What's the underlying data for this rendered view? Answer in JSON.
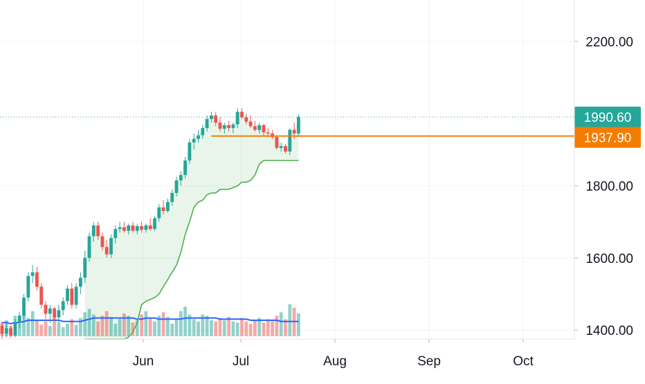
{
  "chart_data": {
    "type": "candlestick",
    "x_ticks": [
      "Jun",
      "Jul",
      "Aug",
      "Sep",
      "Oct"
    ],
    "y_ticks": [
      "2200.00",
      "1800.00",
      "1600.00",
      "1400.00"
    ],
    "ylim": [
      1365,
      2290
    ],
    "last_price": {
      "label": "1990.60",
      "value": 1990.6,
      "color": "#26a69a"
    },
    "stop_level": {
      "label": "1937.90",
      "value": 1937.9,
      "color": "#f57c00"
    },
    "colors": {
      "up": "#26a69a",
      "down": "#ef5350",
      "trail": "#4caf50",
      "volume_ma": "#2962ff"
    },
    "grid": true,
    "candles": [
      {
        "o": 1412,
        "h": 1422,
        "l": 1376,
        "c": 1390
      },
      {
        "o": 1390,
        "h": 1418,
        "l": 1380,
        "c": 1405
      },
      {
        "o": 1405,
        "h": 1412,
        "l": 1378,
        "c": 1385
      },
      {
        "o": 1385,
        "h": 1430,
        "l": 1380,
        "c": 1420
      },
      {
        "o": 1420,
        "h": 1450,
        "l": 1405,
        "c": 1440
      },
      {
        "o": 1440,
        "h": 1500,
        "l": 1430,
        "c": 1490
      },
      {
        "o": 1490,
        "h": 1560,
        "l": 1480,
        "c": 1550
      },
      {
        "o": 1550,
        "h": 1580,
        "l": 1530,
        "c": 1560
      },
      {
        "o": 1560,
        "h": 1575,
        "l": 1510,
        "c": 1520
      },
      {
        "o": 1520,
        "h": 1530,
        "l": 1460,
        "c": 1470
      },
      {
        "o": 1470,
        "h": 1480,
        "l": 1430,
        "c": 1445
      },
      {
        "o": 1445,
        "h": 1470,
        "l": 1420,
        "c": 1460
      },
      {
        "o": 1460,
        "h": 1465,
        "l": 1425,
        "c": 1435
      },
      {
        "o": 1435,
        "h": 1470,
        "l": 1420,
        "c": 1455
      },
      {
        "o": 1455,
        "h": 1490,
        "l": 1440,
        "c": 1480
      },
      {
        "o": 1480,
        "h": 1525,
        "l": 1470,
        "c": 1515
      },
      {
        "o": 1515,
        "h": 1530,
        "l": 1460,
        "c": 1470
      },
      {
        "o": 1470,
        "h": 1530,
        "l": 1460,
        "c": 1520
      },
      {
        "o": 1520,
        "h": 1560,
        "l": 1500,
        "c": 1545
      },
      {
        "o": 1545,
        "h": 1620,
        "l": 1530,
        "c": 1600
      },
      {
        "o": 1600,
        "h": 1670,
        "l": 1590,
        "c": 1660
      },
      {
        "o": 1660,
        "h": 1700,
        "l": 1645,
        "c": 1690
      },
      {
        "o": 1690,
        "h": 1700,
        "l": 1650,
        "c": 1660
      },
      {
        "o": 1660,
        "h": 1670,
        "l": 1620,
        "c": 1630
      },
      {
        "o": 1630,
        "h": 1650,
        "l": 1600,
        "c": 1610
      },
      {
        "o": 1610,
        "h": 1665,
        "l": 1600,
        "c": 1655
      },
      {
        "o": 1655,
        "h": 1690,
        "l": 1640,
        "c": 1680
      },
      {
        "o": 1680,
        "h": 1700,
        "l": 1670,
        "c": 1685
      },
      {
        "o": 1685,
        "h": 1700,
        "l": 1670,
        "c": 1675
      },
      {
        "o": 1675,
        "h": 1695,
        "l": 1665,
        "c": 1690
      },
      {
        "o": 1690,
        "h": 1700,
        "l": 1670,
        "c": 1675
      },
      {
        "o": 1675,
        "h": 1695,
        "l": 1665,
        "c": 1688
      },
      {
        "o": 1688,
        "h": 1700,
        "l": 1670,
        "c": 1678
      },
      {
        "o": 1678,
        "h": 1695,
        "l": 1670,
        "c": 1690
      },
      {
        "o": 1690,
        "h": 1710,
        "l": 1675,
        "c": 1680
      },
      {
        "o": 1680,
        "h": 1715,
        "l": 1675,
        "c": 1710
      },
      {
        "o": 1710,
        "h": 1750,
        "l": 1700,
        "c": 1740
      },
      {
        "o": 1740,
        "h": 1760,
        "l": 1720,
        "c": 1730
      },
      {
        "o": 1730,
        "h": 1765,
        "l": 1725,
        "c": 1755
      },
      {
        "o": 1755,
        "h": 1790,
        "l": 1745,
        "c": 1780
      },
      {
        "o": 1780,
        "h": 1825,
        "l": 1770,
        "c": 1815
      },
      {
        "o": 1815,
        "h": 1840,
        "l": 1800,
        "c": 1830
      },
      {
        "o": 1830,
        "h": 1880,
        "l": 1820,
        "c": 1870
      },
      {
        "o": 1870,
        "h": 1930,
        "l": 1860,
        "c": 1920
      },
      {
        "o": 1920,
        "h": 1945,
        "l": 1900,
        "c": 1930
      },
      {
        "o": 1930,
        "h": 1955,
        "l": 1920,
        "c": 1940
      },
      {
        "o": 1940,
        "h": 1970,
        "l": 1930,
        "c": 1960
      },
      {
        "o": 1960,
        "h": 1995,
        "l": 1950,
        "c": 1985
      },
      {
        "o": 1985,
        "h": 2005,
        "l": 1975,
        "c": 1995
      },
      {
        "o": 1995,
        "h": 2005,
        "l": 1965,
        "c": 1975
      },
      {
        "o": 1975,
        "h": 1990,
        "l": 1950,
        "c": 1958
      },
      {
        "o": 1958,
        "h": 1975,
        "l": 1945,
        "c": 1968
      },
      {
        "o": 1968,
        "h": 1980,
        "l": 1950,
        "c": 1960
      },
      {
        "o": 1960,
        "h": 1975,
        "l": 1945,
        "c": 1970
      },
      {
        "o": 1970,
        "h": 2015,
        "l": 1960,
        "c": 2005
      },
      {
        "o": 2005,
        "h": 2015,
        "l": 1985,
        "c": 1990
      },
      {
        "o": 1990,
        "h": 2000,
        "l": 1970,
        "c": 1978
      },
      {
        "o": 1978,
        "h": 1995,
        "l": 1960,
        "c": 1965
      },
      {
        "o": 1965,
        "h": 1980,
        "l": 1950,
        "c": 1955
      },
      {
        "o": 1955,
        "h": 1975,
        "l": 1945,
        "c": 1968
      },
      {
        "o": 1968,
        "h": 1972,
        "l": 1940,
        "c": 1948
      },
      {
        "o": 1948,
        "h": 1960,
        "l": 1935,
        "c": 1945
      },
      {
        "o": 1945,
        "h": 1955,
        "l": 1930,
        "c": 1935
      },
      {
        "o": 1935,
        "h": 1940,
        "l": 1900,
        "c": 1905
      },
      {
        "o": 1905,
        "h": 1920,
        "l": 1895,
        "c": 1910
      },
      {
        "o": 1910,
        "h": 1915,
        "l": 1890,
        "c": 1895
      },
      {
        "o": 1895,
        "h": 1960,
        "l": 1885,
        "c": 1955
      },
      {
        "o": 1955,
        "h": 1975,
        "l": 1930,
        "c": 1945
      },
      {
        "o": 1945,
        "h": 1998,
        "l": 1935,
        "c": 1990.6
      }
    ],
    "volumes": [
      12,
      14,
      9,
      18,
      11,
      20,
      16,
      22,
      14,
      10,
      13,
      9,
      17,
      12,
      8,
      11,
      15,
      10,
      16,
      21,
      24,
      19,
      13,
      18,
      22,
      17,
      11,
      15,
      20,
      18,
      12,
      14,
      19,
      22,
      16,
      13,
      18,
      21,
      17,
      11,
      15,
      22,
      26,
      19,
      15,
      13,
      19,
      18,
      14,
      13,
      16,
      14,
      17,
      13,
      12,
      16,
      13,
      11,
      14,
      16,
      12,
      15,
      13,
      18,
      21,
      15,
      28,
      25,
      20
    ],
    "volume_ma": [
      12,
      12,
      11,
      12,
      12,
      13,
      14,
      14,
      14,
      14,
      14,
      14,
      14,
      14,
      13,
      13,
      13,
      13,
      13,
      14,
      15,
      16,
      16,
      16,
      16,
      16,
      16,
      16,
      16,
      16,
      16,
      15,
      15,
      16,
      16,
      16,
      15,
      15,
      15,
      15,
      15,
      15,
      16,
      16,
      16,
      16,
      16,
      16,
      16,
      16,
      15,
      15,
      15,
      15,
      15,
      15,
      15,
      14,
      14,
      14,
      14,
      14,
      14,
      14,
      13,
      13,
      13,
      13,
      13
    ],
    "trail": [
      null,
      null,
      null,
      null,
      null,
      null,
      null,
      null,
      null,
      null,
      null,
      null,
      null,
      null,
      null,
      null,
      null,
      null,
      null,
      1375,
      1375,
      1375,
      1375,
      1375,
      1375,
      1375,
      1375,
      1375,
      1375,
      1380,
      1395,
      1420,
      1470,
      1480,
      1485,
      1490,
      1500,
      1520,
      1540,
      1560,
      1580,
      1615,
      1665,
      1700,
      1740,
      1755,
      1760,
      1775,
      1780,
      1780,
      1790,
      1790,
      1790,
      1795,
      1800,
      1810,
      1810,
      1815,
      1830,
      1860,
      1870,
      1870,
      1870,
      1870,
      1870,
      1870,
      1870,
      1870,
      1870
    ]
  }
}
